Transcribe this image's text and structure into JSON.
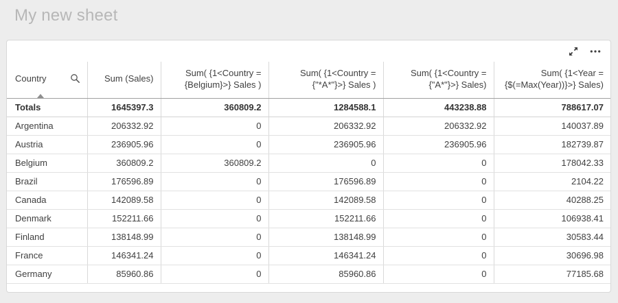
{
  "page": {
    "title": "My new sheet"
  },
  "toolbar": {
    "icons": [
      {
        "name": "expand-icon",
        "meaning": "full screen / expand visualization"
      },
      {
        "name": "more-menu-icon",
        "meaning": "more options menu"
      }
    ]
  },
  "colors": {
    "page_background": "#ededed",
    "card_background": "#ffffff",
    "title_text": "#b7b7b7",
    "cell_text": "#404040",
    "header_border": "#9f9f9f",
    "grid_border": "#d9d9d9"
  },
  "table": {
    "columns": [
      {
        "id": "country",
        "align": "left",
        "sorted": "ascending",
        "has_search": true,
        "lines": [
          "Country"
        ]
      },
      {
        "id": "sum-sales",
        "align": "right",
        "lines": [
          "Sum (Sales)"
        ]
      },
      {
        "id": "sum-belgium",
        "align": "right",
        "lines": [
          "Sum( {1<Country =",
          "{Belgium}>} Sales )"
        ]
      },
      {
        "id": "sum-star-a-star",
        "align": "right",
        "lines": [
          "Sum( {1<Country =",
          "{\"*A*\"}>} Sales )"
        ]
      },
      {
        "id": "sum-a-star",
        "align": "right",
        "lines": [
          "Sum( {1<Country =",
          "{\"A*\"}>} Sales)"
        ]
      },
      {
        "id": "sum-max-year",
        "align": "right",
        "lines": [
          "Sum( {1<Year =",
          "{$(=Max(Year))}>} Sales)"
        ]
      }
    ],
    "totals": {
      "label": "Totals",
      "values": [
        "1645397.3",
        "360809.2",
        "1284588.1",
        "443238.88",
        "788617.07"
      ]
    },
    "rows": [
      {
        "country": "Argentina",
        "values": [
          "206332.92",
          "0",
          "206332.92",
          "206332.92",
          "140037.89"
        ]
      },
      {
        "country": "Austria",
        "values": [
          "236905.96",
          "0",
          "236905.96",
          "236905.96",
          "182739.87"
        ]
      },
      {
        "country": "Belgium",
        "values": [
          "360809.2",
          "360809.2",
          "0",
          "0",
          "178042.33"
        ]
      },
      {
        "country": "Brazil",
        "values": [
          "176596.89",
          "0",
          "176596.89",
          "0",
          "2104.22"
        ]
      },
      {
        "country": "Canada",
        "values": [
          "142089.58",
          "0",
          "142089.58",
          "0",
          "40288.25"
        ]
      },
      {
        "country": "Denmark",
        "values": [
          "152211.66",
          "0",
          "152211.66",
          "0",
          "106938.41"
        ]
      },
      {
        "country": "Finland",
        "values": [
          "138148.99",
          "0",
          "138148.99",
          "0",
          "30583.44"
        ]
      },
      {
        "country": "France",
        "values": [
          "146341.24",
          "0",
          "146341.24",
          "0",
          "30696.98"
        ]
      },
      {
        "country": "Germany",
        "values": [
          "85960.86",
          "0",
          "85960.86",
          "0",
          "77185.68"
        ]
      }
    ]
  }
}
